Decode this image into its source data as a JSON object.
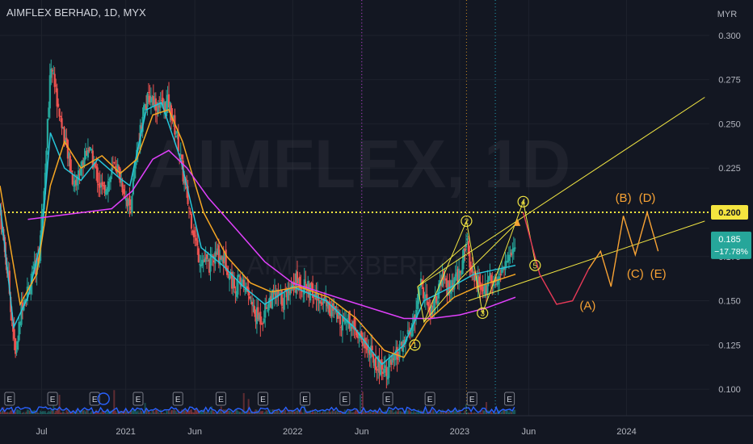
{
  "header": {
    "symbol_name": "AIMFLEX BERHAD",
    "interval": "1D",
    "exchange": "MYX"
  },
  "watermark": {
    "title": "AIMFLEX, 1D",
    "subtitle": "AIMFLEX BERHAD"
  },
  "price_axis": {
    "currency": "MYR",
    "ticks": [
      "0.300",
      "0.275",
      "0.250",
      "0.225",
      "0.200",
      "0.175",
      "0.150",
      "0.125",
      "0.100"
    ]
  },
  "time_axis": {
    "ticks": [
      "Jul",
      "2021",
      "Jun",
      "2022",
      "Jun",
      "2023",
      "Jun",
      "2024"
    ]
  },
  "badges": {
    "level_price": "0.200",
    "last_price": "0.185",
    "change": "−17.78%"
  },
  "wave_labels": [
    "1",
    "2",
    "3",
    "4",
    "5"
  ],
  "abc_labels": [
    "(A)",
    "(B)",
    "(C)",
    "(D)",
    "(E)"
  ],
  "earnings_marker": "E",
  "colors": {
    "background": "#131722",
    "grid": "#1e222d",
    "up": "#26a69a",
    "down": "#ef5350",
    "ma_cyan": "#26c6da",
    "ma_orange": "#f5a623",
    "ma_magenta": "#e040fb",
    "annotation_yellow": "#f0e442",
    "projection_orange": "#f7a234",
    "projection_red": "#e53957",
    "volume": "#2962ff",
    "level_badge": "#f5e53f",
    "last_badge": "#26a69a"
  },
  "chart_data": {
    "type": "candlestick",
    "symbol": "AIMFLEX BERHAD",
    "interval": "1D",
    "exchange": "MYX",
    "currency": "MYR",
    "ylim": [
      0.085,
      0.32
    ],
    "x_range": [
      "2020-04-01",
      "2024-06-30"
    ],
    "horizontal_level": 0.2,
    "last_price": 0.185,
    "change_percent": -17.78,
    "price_path": [
      [
        "2020-04-01",
        0.2
      ],
      [
        "2020-04-20",
        0.16
      ],
      [
        "2020-05-05",
        0.118
      ],
      [
        "2020-05-20",
        0.15
      ],
      [
        "2020-06-05",
        0.158
      ],
      [
        "2020-06-25",
        0.175
      ],
      [
        "2020-07-05",
        0.21
      ],
      [
        "2020-07-15",
        0.255
      ],
      [
        "2020-07-22",
        0.285
      ],
      [
        "2020-08-05",
        0.262
      ],
      [
        "2020-08-25",
        0.235
      ],
      [
        "2020-09-10",
        0.215
      ],
      [
        "2020-09-25",
        0.225
      ],
      [
        "2020-10-10",
        0.238
      ],
      [
        "2020-10-25",
        0.225
      ],
      [
        "2020-11-10",
        0.212
      ],
      [
        "2020-11-25",
        0.218
      ],
      [
        "2020-12-10",
        0.228
      ],
      [
        "2020-12-25",
        0.215
      ],
      [
        "2021-01-10",
        0.202
      ],
      [
        "2021-01-25",
        0.232
      ],
      [
        "2021-02-08",
        0.258
      ],
      [
        "2021-02-25",
        0.266
      ],
      [
        "2021-03-15",
        0.258
      ],
      [
        "2021-04-05",
        0.262
      ],
      [
        "2021-04-25",
        0.24
      ],
      [
        "2021-05-10",
        0.215
      ],
      [
        "2021-05-25",
        0.195
      ],
      [
        "2021-06-10",
        0.175
      ],
      [
        "2021-07-01",
        0.17
      ],
      [
        "2021-07-20",
        0.176
      ],
      [
        "2021-08-05",
        0.174
      ],
      [
        "2021-08-25",
        0.158
      ],
      [
        "2021-09-10",
        0.162
      ],
      [
        "2021-09-25",
        0.155
      ],
      [
        "2021-10-10",
        0.142
      ],
      [
        "2021-10-25",
        0.14
      ],
      [
        "2021-11-10",
        0.15
      ],
      [
        "2021-11-25",
        0.153
      ],
      [
        "2021-12-10",
        0.15
      ],
      [
        "2021-12-25",
        0.158
      ],
      [
        "2022-01-10",
        0.162
      ],
      [
        "2022-01-25",
        0.158
      ],
      [
        "2022-02-10",
        0.155
      ],
      [
        "2022-02-25",
        0.15
      ],
      [
        "2022-03-10",
        0.152
      ],
      [
        "2022-03-25",
        0.145
      ],
      [
        "2022-04-10",
        0.14
      ],
      [
        "2022-04-25",
        0.14
      ],
      [
        "2022-05-10",
        0.138
      ],
      [
        "2022-05-25",
        0.132
      ],
      [
        "2022-06-10",
        0.125
      ],
      [
        "2022-06-25",
        0.118
      ],
      [
        "2022-07-10",
        0.113
      ],
      [
        "2022-07-25",
        0.112
      ],
      [
        "2022-08-10",
        0.115
      ],
      [
        "2022-08-25",
        0.122
      ],
      [
        "2022-09-10",
        0.13
      ],
      [
        "2022-09-25",
        0.138
      ],
      [
        "2022-10-05",
        0.16
      ],
      [
        "2022-10-15",
        0.155
      ],
      [
        "2022-10-28",
        0.142
      ],
      [
        "2022-11-10",
        0.15
      ],
      [
        "2022-11-25",
        0.162
      ],
      [
        "2022-12-10",
        0.155
      ],
      [
        "2022-12-25",
        0.162
      ],
      [
        "2023-01-05",
        0.168
      ],
      [
        "2023-01-16",
        0.185
      ],
      [
        "2023-01-25",
        0.165
      ],
      [
        "2023-02-10",
        0.16
      ],
      [
        "2023-02-25",
        0.155
      ],
      [
        "2023-03-10",
        0.165
      ],
      [
        "2023-03-25",
        0.162
      ],
      [
        "2023-04-10",
        0.17
      ],
      [
        "2023-04-25",
        0.178
      ],
      [
        "2023-05-03",
        0.185
      ]
    ],
    "moving_averages": [
      {
        "name": "short",
        "color": "cyan",
        "values": [
          [
            "2020-04-01",
            0.205
          ],
          [
            "2020-05-01",
            0.135
          ],
          [
            "2020-06-01",
            0.152
          ],
          [
            "2020-07-01",
            0.185
          ],
          [
            "2020-07-20",
            0.245
          ],
          [
            "2020-08-20",
            0.225
          ],
          [
            "2020-09-25",
            0.218
          ],
          [
            "2020-11-01",
            0.23
          ],
          [
            "2020-12-15",
            0.22
          ],
          [
            "2021-01-10",
            0.215
          ],
          [
            "2021-02-15",
            0.258
          ],
          [
            "2021-03-20",
            0.262
          ],
          [
            "2021-05-01",
            0.23
          ],
          [
            "2021-06-15",
            0.18
          ],
          [
            "2021-08-01",
            0.17
          ],
          [
            "2021-09-15",
            0.158
          ],
          [
            "2021-11-01",
            0.148
          ],
          [
            "2022-01-01",
            0.158
          ],
          [
            "2022-03-15",
            0.15
          ],
          [
            "2022-05-15",
            0.135
          ],
          [
            "2022-07-15",
            0.114
          ],
          [
            "2022-09-01",
            0.125
          ],
          [
            "2022-10-15",
            0.15
          ],
          [
            "2022-12-15",
            0.158
          ],
          [
            "2023-02-01",
            0.165
          ],
          [
            "2023-05-03",
            0.17
          ]
        ]
      },
      {
        "name": "medium",
        "color": "orange",
        "values": [
          [
            "2020-04-01",
            0.215
          ],
          [
            "2020-05-15",
            0.148
          ],
          [
            "2020-06-20",
            0.165
          ],
          [
            "2020-07-20",
            0.215
          ],
          [
            "2020-08-20",
            0.24
          ],
          [
            "2020-09-25",
            0.225
          ],
          [
            "2020-11-10",
            0.232
          ],
          [
            "2020-12-20",
            0.222
          ],
          [
            "2021-01-25",
            0.23
          ],
          [
            "2021-03-01",
            0.255
          ],
          [
            "2021-04-05",
            0.258
          ],
          [
            "2021-05-05",
            0.24
          ],
          [
            "2021-06-20",
            0.2
          ],
          [
            "2021-08-10",
            0.175
          ],
          [
            "2021-10-01",
            0.16
          ],
          [
            "2021-11-15",
            0.155
          ],
          [
            "2022-01-15",
            0.158
          ],
          [
            "2022-03-20",
            0.152
          ],
          [
            "2022-05-20",
            0.14
          ],
          [
            "2022-07-20",
            0.122
          ],
          [
            "2022-09-01",
            0.118
          ],
          [
            "2022-10-20",
            0.138
          ],
          [
            "2022-12-20",
            0.152
          ],
          [
            "2023-02-10",
            0.158
          ],
          [
            "2023-05-03",
            0.165
          ]
        ]
      },
      {
        "name": "long",
        "color": "magenta",
        "values": [
          [
            "2020-06-01",
            0.196
          ],
          [
            "2020-08-01",
            0.198
          ],
          [
            "2020-10-01",
            0.2
          ],
          [
            "2020-12-01",
            0.202
          ],
          [
            "2021-01-15",
            0.212
          ],
          [
            "2021-03-01",
            0.23
          ],
          [
            "2021-04-05",
            0.235
          ],
          [
            "2021-05-15",
            0.225
          ],
          [
            "2021-07-01",
            0.208
          ],
          [
            "2021-09-01",
            0.19
          ],
          [
            "2021-11-01",
            0.172
          ],
          [
            "2022-01-01",
            0.16
          ],
          [
            "2022-03-01",
            0.155
          ],
          [
            "2022-05-01",
            0.15
          ],
          [
            "2022-07-01",
            0.145
          ],
          [
            "2022-09-01",
            0.14
          ],
          [
            "2022-11-01",
            0.14
          ],
          [
            "2023-01-01",
            0.142
          ],
          [
            "2023-03-01",
            0.146
          ],
          [
            "2023-05-03",
            0.152
          ]
        ]
      }
    ],
    "elliott_waves": [
      {
        "label": "1",
        "date": "2022-09-25",
        "price": 0.125
      },
      {
        "label": "2",
        "date": "2023-01-16",
        "price": 0.195
      },
      {
        "label": "3",
        "date": "2023-02-20",
        "price": 0.143
      },
      {
        "label": "4",
        "date": "2023-05-20",
        "price": 0.206
      },
      {
        "label": "5",
        "date": "2023-06-15",
        "price": 0.17
      }
    ],
    "channel_lines": [
      [
        [
          "2022-10-01",
          0.158
        ],
        [
          "2023-01-16",
          0.182
        ]
      ],
      [
        [
          "2022-10-15",
          0.138
        ],
        [
          "2023-01-05",
          0.163
        ]
      ],
      [
        [
          "2023-01-05",
          0.163
        ],
        [
          "2023-05-10",
          0.195
        ]
      ],
      [
        [
          "2022-10-01",
          0.158
        ],
        [
          "2024-06-20",
          0.265
        ]
      ],
      [
        [
          "2023-01-20",
          0.15
        ],
        [
          "2024-06-20",
          0.195
        ]
      ]
    ],
    "projection": {
      "red_curve": [
        [
          "2023-05-20",
          0.2
        ],
        [
          "2023-06-25",
          0.165
        ],
        [
          "2023-08-01",
          0.148
        ],
        [
          "2023-09-05",
          0.15
        ],
        [
          "2023-10-10",
          0.168
        ]
      ],
      "orange_path": [
        [
          "2023-10-10",
          0.168
        ],
        [
          "2023-11-05",
          0.178
        ],
        [
          "2023-11-28",
          0.158
        ],
        [
          "2023-12-25",
          0.198
        ],
        [
          "2024-01-20",
          0.176
        ],
        [
          "2024-02-15",
          0.2
        ],
        [
          "2024-03-10",
          0.178
        ]
      ],
      "labels": [
        {
          "label": "(A)",
          "date": "2023-10-08",
          "price": 0.145
        },
        {
          "label": "(B)",
          "date": "2023-12-25",
          "price": 0.206
        },
        {
          "label": "(C)",
          "date": "2024-01-20",
          "price": 0.163
        },
        {
          "label": "(D)",
          "date": "2024-02-15",
          "price": 0.206
        },
        {
          "label": "(E)",
          "date": "2024-03-10",
          "price": 0.163
        }
      ]
    },
    "vertical_markers": [
      "2022-06-01",
      "2023-01-16",
      "2023-03-20"
    ],
    "earnings_dates": [
      "2020-04-22",
      "2020-07-25",
      "2020-10-25",
      "2021-01-28",
      "2021-04-25",
      "2021-07-28",
      "2021-10-28",
      "2022-01-28",
      "2022-04-25",
      "2022-07-28",
      "2022-10-28",
      "2023-01-28",
      "2023-04-20"
    ]
  }
}
